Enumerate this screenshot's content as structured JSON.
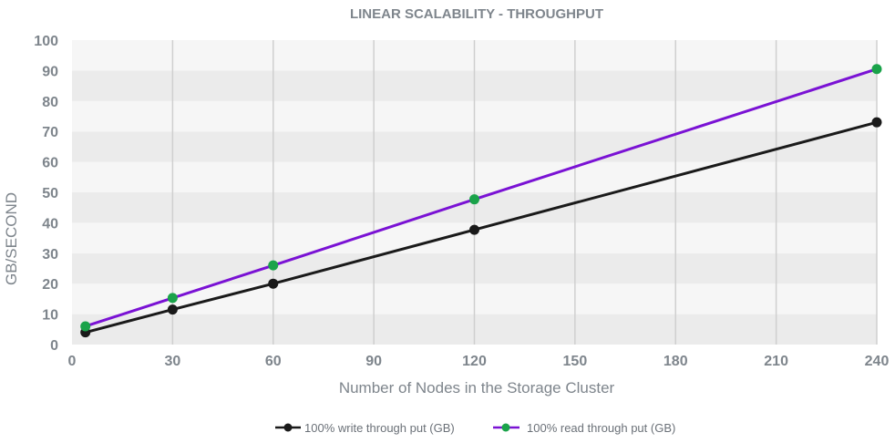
{
  "chart_data": {
    "type": "line",
    "title": "LINEAR SCALABILITY - THROUGHPUT",
    "xlabel": "Number of Nodes in the Storage Cluster",
    "ylabel": "GB/SECOND",
    "xlim": [
      0,
      240
    ],
    "ylim": [
      0,
      100
    ],
    "xticks": [
      0,
      30,
      60,
      90,
      120,
      150,
      180,
      210,
      240
    ],
    "yticks": [
      0,
      10,
      20,
      30,
      40,
      50,
      60,
      70,
      80,
      90,
      100
    ],
    "grid": "vertical lines with alternating horizontal bands",
    "legend_position": "bottom-center",
    "series": [
      {
        "name": "100% write through put (GB)",
        "line_color": "#1a1a1a",
        "marker_color": "#1a1a1a",
        "points": [
          {
            "x": 4,
            "y": 4
          },
          {
            "x": 30,
            "y": 11.5
          },
          {
            "x": 60,
            "y": 20
          },
          {
            "x": 120,
            "y": 37.7
          },
          {
            "x": 240,
            "y": 73
          }
        ]
      },
      {
        "name": "100% read through put (GB)",
        "line_color": "#7a12d4",
        "marker_color": "#1aa34a",
        "points": [
          {
            "x": 4,
            "y": 6
          },
          {
            "x": 30,
            "y": 15.3
          },
          {
            "x": 60,
            "y": 26
          },
          {
            "x": 120,
            "y": 47.7
          },
          {
            "x": 240,
            "y": 90.5
          }
        ]
      }
    ]
  },
  "colors": {
    "title": "#7e858c",
    "axis_text": "#7e858c",
    "band_dark": "#ebebeb",
    "band_light": "#f6f6f6",
    "gridline": "#cfcfcf",
    "legend_text": "#6b7178"
  }
}
